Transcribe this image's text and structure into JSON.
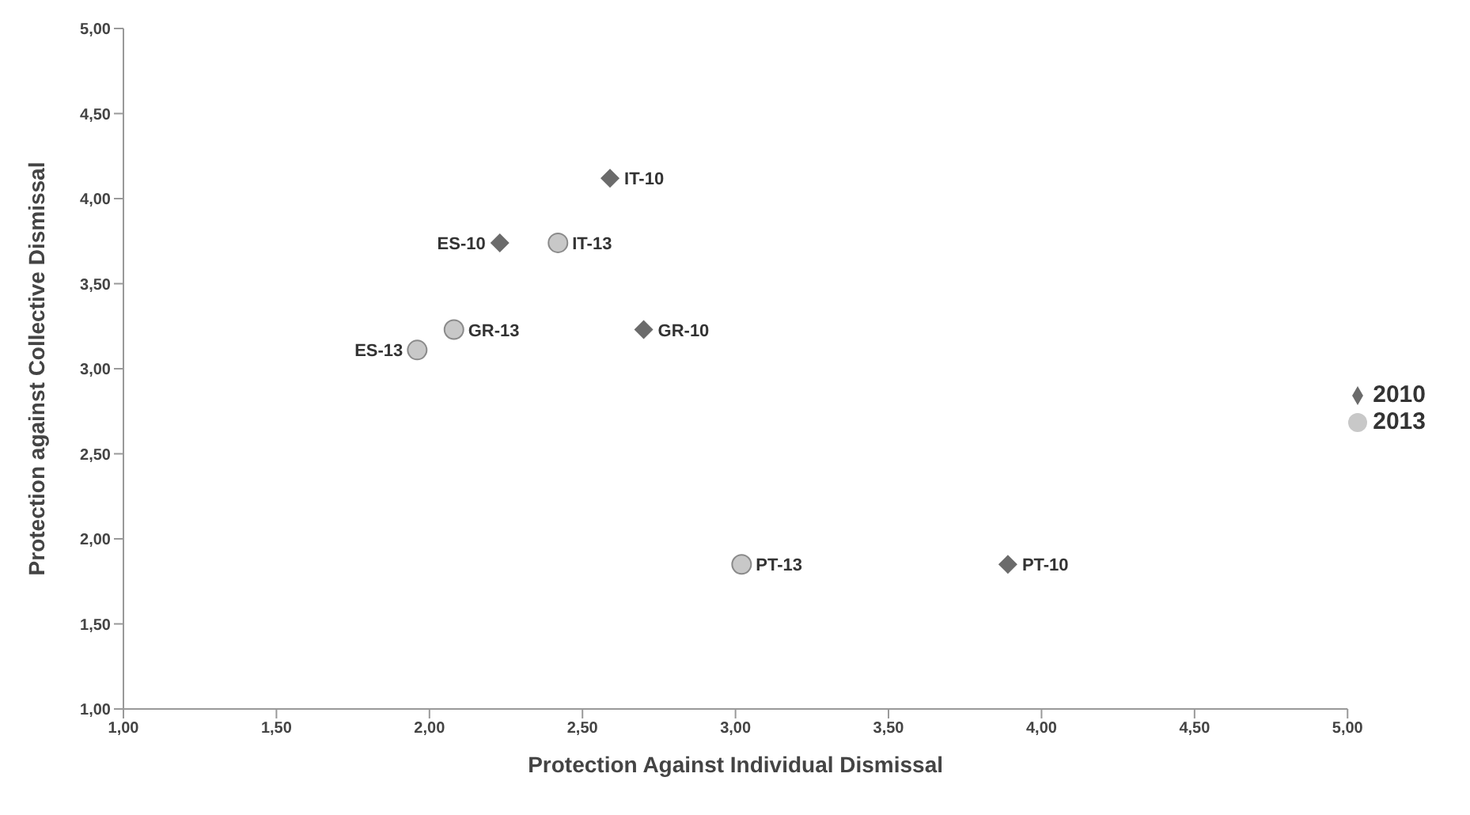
{
  "chart_data": {
    "type": "scatter",
    "xlabel": "Protection Against Individual Dismissal",
    "ylabel": "Protection against Collective Dismissal",
    "legend": "right",
    "grid": false,
    "xlim": [
      1,
      5
    ],
    "ylim": [
      1,
      5
    ],
    "xticks": [
      {
        "value": 1,
        "label": "1,00"
      },
      {
        "value": 1.5,
        "label": "1,50"
      },
      {
        "value": 2,
        "label": "2,00"
      },
      {
        "value": 2.5,
        "label": "2,50"
      },
      {
        "value": 3,
        "label": "3,00"
      },
      {
        "value": 3.5,
        "label": "3,50"
      },
      {
        "value": 4,
        "label": "4,00"
      },
      {
        "value": 4.5,
        "label": "4,50"
      },
      {
        "value": 5,
        "label": "5,00"
      }
    ],
    "yticks": [
      {
        "value": 1,
        "label": "1,00"
      },
      {
        "value": 1.5,
        "label": "1,50"
      },
      {
        "value": 2,
        "label": "2,00"
      },
      {
        "value": 2.5,
        "label": "2,50"
      },
      {
        "value": 3,
        "label": "3,00"
      },
      {
        "value": 3.5,
        "label": "3,50"
      },
      {
        "value": 4,
        "label": "4,00"
      },
      {
        "value": 4.5,
        "label": "4,50"
      },
      {
        "value": 5,
        "label": "5,00"
      }
    ],
    "series": [
      {
        "name": "2010",
        "color": "#6b6b6b",
        "marker": "diamond",
        "x": [
          2.59,
          2.23,
          2.7,
          3.89
        ],
        "values": [
          4.12,
          3.74,
          3.23,
          1.85
        ]
      },
      {
        "name": "2013",
        "color": "#c8c8c8",
        "marker": "circle",
        "x": [
          2.42,
          2.08,
          1.96,
          3.02
        ],
        "values": [
          3.74,
          3.23,
          3.11,
          1.85
        ]
      }
    ],
    "annotations": [
      {
        "text": "IT-10",
        "x": 2.59,
        "y": 4.12
      },
      {
        "text": "ES-10",
        "x": 2.23,
        "y": 3.74
      },
      {
        "text": "GR-10",
        "x": 2.7,
        "y": 3.23
      },
      {
        "text": "PT-10",
        "x": 3.89,
        "y": 1.85
      },
      {
        "text": "IT-13",
        "x": 2.42,
        "y": 3.74
      },
      {
        "text": "GR-13",
        "x": 2.08,
        "y": 3.23
      },
      {
        "text": "ES-13",
        "x": 1.96,
        "y": 3.11
      },
      {
        "text": "PT-13",
        "x": 3.02,
        "y": 1.85
      }
    ]
  }
}
